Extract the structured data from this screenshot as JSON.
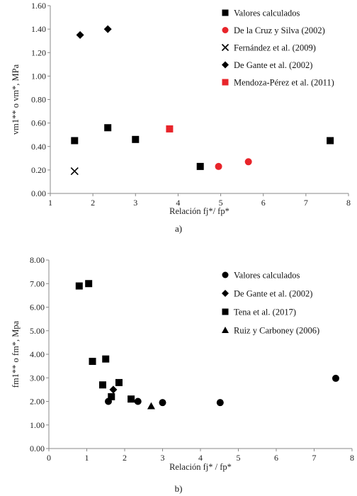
{
  "chart_data": [
    {
      "type": "scatter",
      "caption": "a)",
      "xlabel": "Relación fj*/ fp*",
      "ylabel": "vm1** o vm*, MPa",
      "xlim": [
        1,
        8
      ],
      "ylim": [
        0.0,
        1.6
      ],
      "x_ticks": [
        "1",
        "2",
        "3",
        "4",
        "5",
        "6",
        "7",
        "8"
      ],
      "y_ticks": [
        "0.00",
        "0.20",
        "0.40",
        "0.60",
        "0.80",
        "1.00",
        "1.20",
        "1.40",
        "1.60"
      ],
      "grid": false,
      "legend_position": "right",
      "series": [
        {
          "name": "Valores calculados",
          "marker": "square",
          "color": "#000000",
          "points": [
            [
              1.57,
              0.45
            ],
            [
              2.35,
              0.56
            ],
            [
              3.0,
              0.46
            ],
            [
              4.52,
              0.23
            ],
            [
              7.57,
              0.45
            ]
          ]
        },
        {
          "name": "De la Cruz y Silva (2002)",
          "marker": "circle",
          "color": "#e8242a",
          "points": [
            [
              4.95,
              0.23
            ],
            [
              5.65,
              0.27
            ]
          ]
        },
        {
          "name": "Fernández et al. (2009)",
          "marker": "asterisk",
          "color": "#000000",
          "points": [
            [
              1.57,
              0.19
            ]
          ]
        },
        {
          "name": "De Gante et al. (2002)",
          "marker": "diamond",
          "color": "#000000",
          "points": [
            [
              1.7,
              1.35
            ],
            [
              2.35,
              1.4
            ]
          ]
        },
        {
          "name": "Mendoza-Pérez et al. (2011)",
          "marker": "square",
          "color": "#e8242a",
          "points": [
            [
              3.8,
              0.55
            ]
          ]
        }
      ]
    },
    {
      "type": "scatter",
      "caption": "b)",
      "xlabel": "Relación fj* / fp*",
      "ylabel": "fm1** o fm*, Mpa",
      "xlim": [
        0,
        8
      ],
      "ylim": [
        0.0,
        8.0
      ],
      "x_ticks": [
        "0",
        "1",
        "2",
        "3",
        "4",
        "5",
        "6",
        "7",
        "8"
      ],
      "y_ticks": [
        "0.00",
        "1.00",
        "2.00",
        "3.00",
        "4.00",
        "5.00",
        "6.00",
        "7.00",
        "8.00"
      ],
      "grid": false,
      "legend_position": "right",
      "series": [
        {
          "name": "Valores calculados",
          "marker": "circle",
          "color": "#000000",
          "points": [
            [
              1.57,
              2.0
            ],
            [
              2.35,
              2.0
            ],
            [
              3.0,
              1.95
            ],
            [
              4.52,
              1.95
            ],
            [
              7.57,
              2.98
            ]
          ]
        },
        {
          "name": "De Gante et al. (2002)",
          "marker": "diamond",
          "color": "#000000",
          "points": [
            [
              1.7,
              2.5
            ]
          ]
        },
        {
          "name": "Tena et al. (2017)",
          "marker": "square",
          "color": "#000000",
          "points": [
            [
              0.8,
              6.9
            ],
            [
              1.05,
              7.0
            ],
            [
              1.15,
              3.7
            ],
            [
              1.5,
              3.8
            ],
            [
              1.42,
              2.7
            ],
            [
              1.85,
              2.8
            ],
            [
              1.65,
              2.2
            ],
            [
              2.17,
              2.1
            ]
          ]
        },
        {
          "name": "Ruiz y Carboney (2006)",
          "marker": "triangle",
          "color": "#000000",
          "points": [
            [
              2.7,
              1.8
            ]
          ]
        }
      ]
    }
  ]
}
